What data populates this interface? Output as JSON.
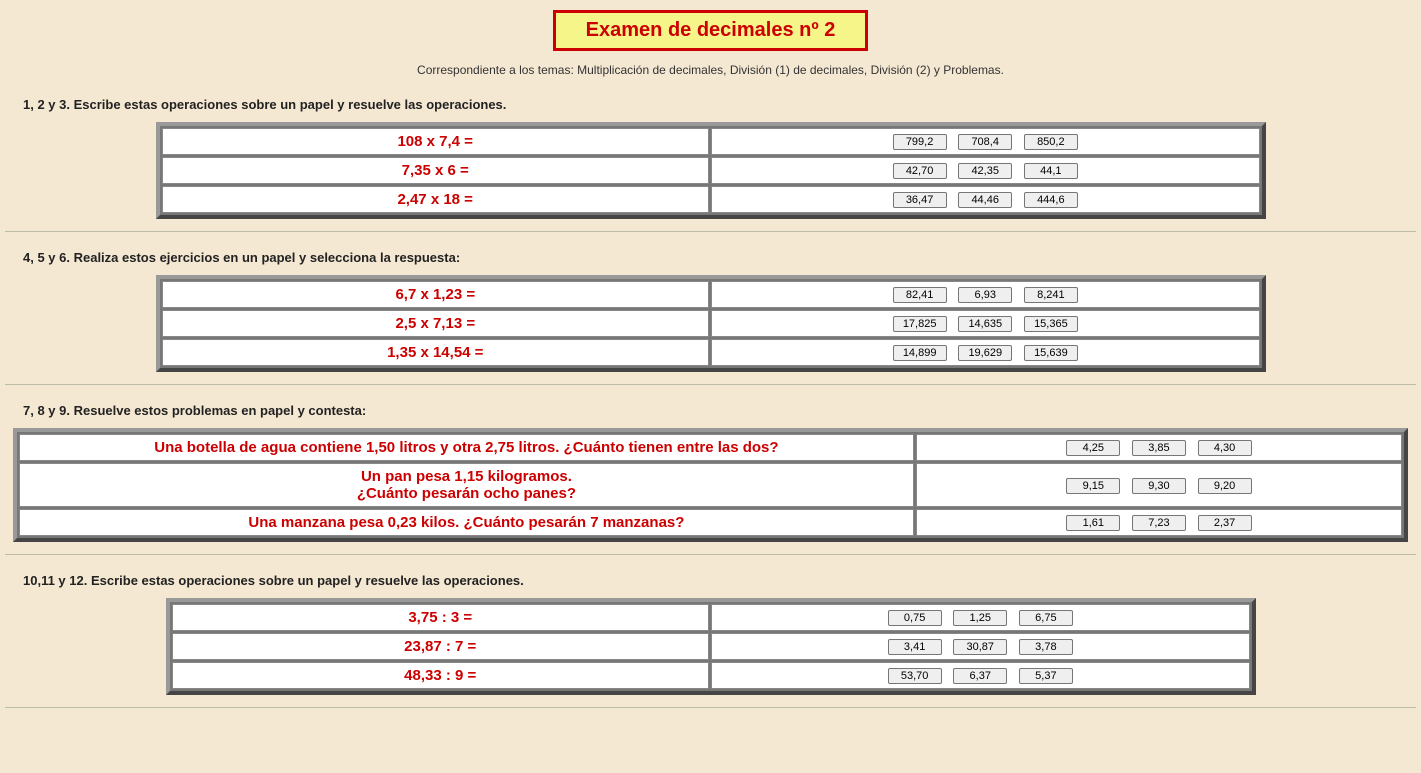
{
  "title": "Examen de decimales nº 2",
  "subtitle": "Correspondiente a los temas: Multiplicación de decimales, División (1) de decimales, División (2) y Problemas.",
  "section1": {
    "heading": "1, 2 y 3. Escribe estas operaciones sobre un papel y resuelve las operaciones.",
    "rows": [
      {
        "q": "108 x 7,4  =",
        "a1": "799,2",
        "a2": "708,4",
        "a3": "850,2"
      },
      {
        "q": "7,35 x 6 =",
        "a1": "42,70",
        "a2": "42,35",
        "a3": "44,1"
      },
      {
        "q": "2,47 x 18 =",
        "a1": "36,47",
        "a2": "44,46",
        "a3": "444,6"
      }
    ]
  },
  "section2": {
    "heading": "4, 5 y 6. Realiza estos ejercicios en un papel y selecciona la respuesta:",
    "rows": [
      {
        "q": "6,7 x 1,23  =",
        "a1": "82,41",
        "a2": "6,93",
        "a3": "8,241"
      },
      {
        "q": "2,5 x 7,13 =",
        "a1": "17,825",
        "a2": "14,635",
        "a3": "15,365"
      },
      {
        "q": "1,35 x 14,54 =",
        "a1": "14,899",
        "a2": "19,629",
        "a3": "15,639"
      }
    ]
  },
  "section3": {
    "heading": "7, 8 y 9. Resuelve estos problemas en papel y contesta:",
    "rows": [
      {
        "q": "Una botella de agua contiene 1,50 litros y otra 2,75 litros. ¿Cuánto tienen entre las dos?",
        "a1": "4,25",
        "a2": "3,85",
        "a3": "4,30"
      },
      {
        "q": "Un pan pesa 1,15 kilogramos.\n¿Cuánto pesarán ocho panes?",
        "a1": "9,15",
        "a2": "9,30",
        "a3": "9,20"
      },
      {
        "q": "Una manzana pesa 0,23 kilos. ¿Cuánto pesarán 7 manzanas?",
        "a1": "1,61",
        "a2": "7,23",
        "a3": "2,37"
      }
    ]
  },
  "section4": {
    "heading": "10,11 y 12. Escribe estas operaciones sobre un papel y resuelve las operaciones.",
    "rows": [
      {
        "q": "3,75 : 3  =",
        "a1": "0,75",
        "a2": "1,25",
        "a3": "6,75"
      },
      {
        "q": "23,87 : 7 =",
        "a1": "3,41",
        "a2": "30,87",
        "a3": "3,78"
      },
      {
        "q": "48,33 : 9 =",
        "a1": "53,70",
        "a2": "6,37",
        "a3": "5,37"
      }
    ]
  }
}
